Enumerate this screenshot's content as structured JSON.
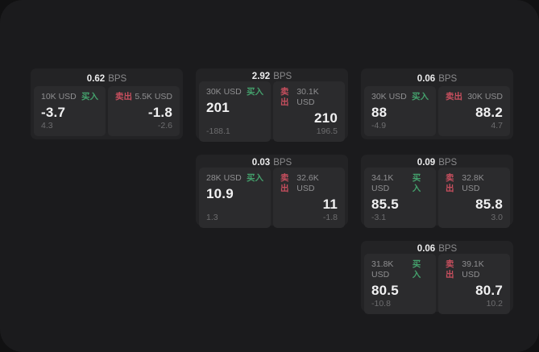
{
  "labels": {
    "buy": "买入",
    "sell": "卖出",
    "bps_unit": "BPS"
  },
  "colors": {
    "buy": "#44a06c",
    "sell": "#c74f5e",
    "panel_background": "#2b2b2d",
    "card_background": "#232325",
    "screen_background": "#1b1b1d"
  },
  "cards": [
    {
      "row": 1,
      "col": 1,
      "bps": "0.62",
      "buy": {
        "size": "10K USD",
        "value": "-3.7",
        "sub": "4.3"
      },
      "sell": {
        "size": "5.5K USD",
        "value": "-1.8",
        "sub": "-2.6"
      }
    },
    {
      "row": 1,
      "col": 2,
      "bps": "2.92",
      "buy": {
        "size": "30K USD",
        "value": "201",
        "sub": "-188.1"
      },
      "sell": {
        "size": "30.1K USD",
        "value": "210",
        "sub": "196.5"
      }
    },
    {
      "row": 1,
      "col": 3,
      "bps": "0.06",
      "buy": {
        "size": "30K USD",
        "value": "88",
        "sub": "-4.9"
      },
      "sell": {
        "size": "30K USD",
        "value": "88.2",
        "sub": "4.7"
      }
    },
    {
      "row": 2,
      "col": 2,
      "bps": "0.03",
      "buy": {
        "size": "28K USD",
        "value": "10.9",
        "sub": "1.3"
      },
      "sell": {
        "size": "32.6K USD",
        "value": "11",
        "sub": "-1.8"
      }
    },
    {
      "row": 2,
      "col": 3,
      "bps": "0.09",
      "buy": {
        "size": "34.1K USD",
        "value": "85.5",
        "sub": "-3.1"
      },
      "sell": {
        "size": "32.8K USD",
        "value": "85.8",
        "sub": "3.0"
      }
    },
    {
      "row": 3,
      "col": 3,
      "bps": "0.06",
      "buy": {
        "size": "31.8K USD",
        "value": "80.5",
        "sub": "-10.8"
      },
      "sell": {
        "size": "39.1K USD",
        "value": "80.7",
        "sub": "10.2"
      }
    }
  ]
}
